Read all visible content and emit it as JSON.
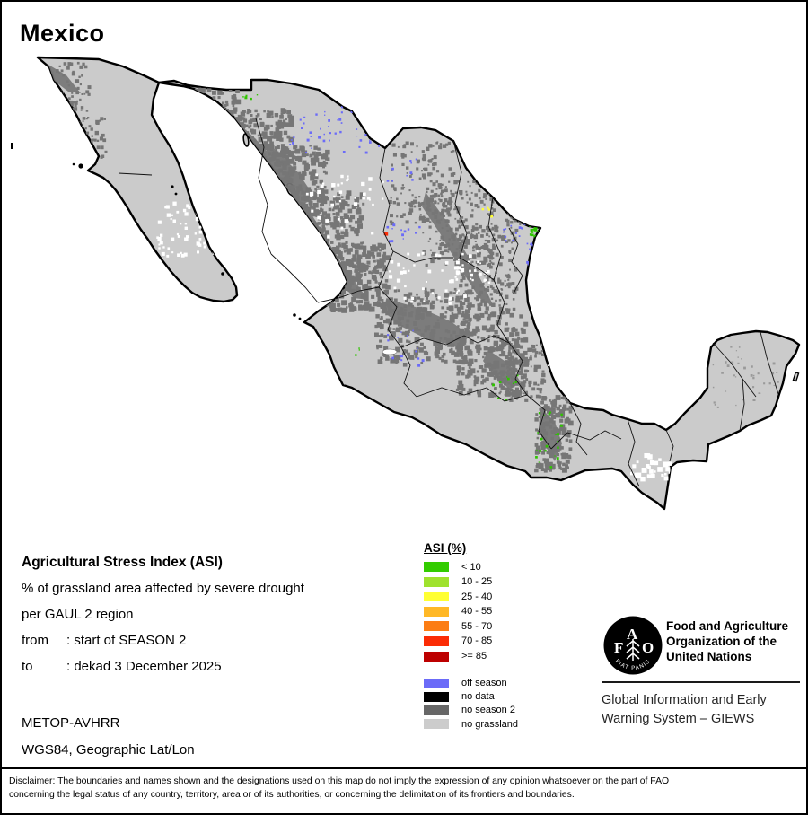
{
  "title": "Mexico",
  "map": {
    "land_color": "#cbcbcb",
    "sea_color": "#ffffff",
    "boundary_color": "#000000",
    "no_season2_color": "#767676"
  },
  "info": {
    "heading": "Agricultural Stress Index (ASI)",
    "line1": "% of grassland area affected by severe drought",
    "line2": "per GAUL 2 region",
    "from_label": "from",
    "from_value": ": start of SEASON 2",
    "to_label": "to",
    "to_value": ": dekad 3 December 2025",
    "sensor": "METOP-AVHRR",
    "projection": "WGS84, Geographic Lat/Lon"
  },
  "legend": {
    "heading": "ASI (%)",
    "classes": [
      {
        "label": "< 10",
        "color": "#33cc00"
      },
      {
        "label": "10 - 25",
        "color": "#9fe22e"
      },
      {
        "label": "25 - 40",
        "color": "#ffff33"
      },
      {
        "label": "40 - 55",
        "color": "#ffb826"
      },
      {
        "label": "55 - 70",
        "color": "#fc7d14"
      },
      {
        "label": "70 - 85",
        "color": "#fb2c05"
      },
      {
        "label": ">= 85",
        "color": "#bd0000"
      }
    ],
    "extra_classes": [
      {
        "label": "off season",
        "color": "#6b6bf8"
      },
      {
        "label": "no data",
        "color": "#000000"
      },
      {
        "label": "no season 2",
        "color": "#676767"
      },
      {
        "label": "no grassland",
        "color": "#cccccc"
      }
    ]
  },
  "fao": {
    "logo_letters": [
      "F",
      "A",
      "O"
    ],
    "logo_motto": "FIAT PANIS",
    "org_lines": [
      "Food and Agriculture",
      "Organization of the",
      "United Nations"
    ],
    "giews_lines": [
      "Global Information and Early",
      "Warning System – GIEWS"
    ]
  },
  "disclaimer_lines": [
    "Disclaimer: The boundaries and names shown and the designations used on this map do not imply the expression of any opinion whatsoever on the part of FAO",
    "concerning the legal status of any country, territory, area or of its authorities, or concerning the delimitation of its frontiers and boundaries."
  ]
}
